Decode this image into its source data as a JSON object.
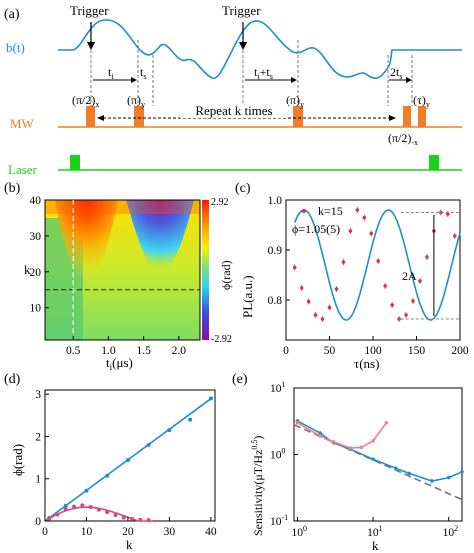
{
  "panel_a": {
    "label": "(a)",
    "row_labels": {
      "bt": "b(t)",
      "mw": "MW",
      "laser": "Laser"
    },
    "trigger1": "Trigger",
    "trigger2": "Trigger",
    "t1": "t",
    "t1_sub": "i",
    "ts1": "t",
    "ts1_sub": "s",
    "t2": "t",
    "t2_sub": "i",
    "t2_mid": "+t",
    "t2_sub2": "s",
    "ts2": "2t",
    "ts2_sub": "s",
    "pulse_pi2x": "(π/2)",
    "pulse_pi2x_sub": "x",
    "pulse_piy": "(π)",
    "pulse_piy_sub": "y",
    "pulse_pi": "(π)",
    "pulse_pi_sub": "y",
    "pulse_tau": "(τ)",
    "pulse_tau_sub": "y",
    "pulse_pi2mx": "(π/2)",
    "pulse_pi2mx_sub": "-x",
    "repeat": "Repeat k times",
    "colors": {
      "signal": "#1f8fcf",
      "mw": "#f07d2a",
      "laser": "#18d418"
    }
  },
  "chart_data": [
    {
      "panel": "(b)",
      "type": "heatmap",
      "xlabel": "t",
      "xlabel_sub": "i",
      "xlabel_unit": "(μs)",
      "ylabel": "k",
      "x_ticks": [
        "0.5",
        "1.0",
        "1.5",
        "2.0"
      ],
      "y_ticks": [
        "10",
        "20",
        "30",
        "40"
      ],
      "xlim": [
        0.1,
        2.3
      ],
      "ylim": [
        1,
        40
      ],
      "colorbar_label": "ϕ(rad)",
      "colorbar_max": "2.92",
      "colorbar_min": "-2.92",
      "dashed_lines": {
        "horizontal_k": 15,
        "vertical_ti": 0.5
      }
    },
    {
      "panel": "(c)",
      "type": "scatter",
      "xlabel": "τ(ns)",
      "ylabel": "PL(a.u.)",
      "x_ticks": [
        "0",
        "50",
        "100",
        "150",
        "200"
      ],
      "y_ticks": [
        "0.8",
        "0.9",
        "1.0"
      ],
      "xlim": [
        0,
        200
      ],
      "ylim": [
        0.72,
        1.0
      ],
      "legend": "k=15",
      "annotation_phase": "ϕ=1.05(5)",
      "annotation_amp": "2A",
      "fit": {
        "offset": 0.87,
        "amplitude": 0.11,
        "period_ns": 97,
        "phase_rad": 1.05
      },
      "points_x": [
        10,
        18,
        26,
        34,
        42,
        50,
        58,
        66,
        74,
        82,
        90,
        98,
        106,
        114,
        122,
        130,
        138,
        146,
        154,
        162,
        170,
        178,
        186,
        194
      ],
      "points_y": [
        0.865,
        0.824,
        0.797,
        0.77,
        0.762,
        0.785,
        0.822,
        0.876,
        0.938,
        0.98,
        0.965,
        0.933,
        0.878,
        0.828,
        0.79,
        0.762,
        0.77,
        0.798,
        0.838,
        0.886,
        0.938,
        0.975,
        0.972,
        0.928
      ]
    },
    {
      "panel": "(d)",
      "type": "scatter",
      "xlabel": "k",
      "ylabel": "ϕ(rad)",
      "x_ticks": [
        "0",
        "10",
        "20",
        "30",
        "40"
      ],
      "y_ticks": [
        "0",
        "1",
        "2",
        "3"
      ],
      "xlim": [
        0,
        41
      ],
      "ylim": [
        0,
        3.1
      ],
      "series": [
        {
          "color": "#1f8fcf",
          "x": [
            1,
            5,
            10,
            15,
            20,
            25,
            30,
            35,
            40
          ],
          "y": [
            0.07,
            0.36,
            0.72,
            1.07,
            1.44,
            1.8,
            2.15,
            2.4,
            2.9
          ]
        },
        {
          "color": "#e0457b",
          "x": [
            1,
            3,
            5,
            7,
            9,
            11,
            13,
            15,
            17,
            19,
            21,
            23,
            25
          ],
          "y": [
            0.05,
            0.15,
            0.28,
            0.34,
            0.37,
            0.33,
            0.27,
            0.21,
            0.14,
            0.08,
            0.05,
            0.03,
            0.02
          ]
        }
      ]
    },
    {
      "panel": "(e)",
      "type": "line",
      "xlabel": "k",
      "ylabel": "Sensitivity(μT/Hz",
      "ylabel_sup": "0.5",
      "ylabel_end": ")",
      "x_ticks": [
        "10",
        "10",
        "10"
      ],
      "x_tick_exps": [
        "0",
        "1",
        "2"
      ],
      "y_ticks": [
        "10",
        "10",
        "10"
      ],
      "y_tick_exps": [
        "-1",
        "0",
        "1"
      ],
      "x_scale": "log",
      "y_scale": "log",
      "xlim": [
        0.9,
        150
      ],
      "ylim": [
        0.1,
        10
      ],
      "series": [
        {
          "color": "#1f8fcf",
          "x": [
            1,
            2,
            3,
            5,
            10,
            20,
            30,
            60,
            100,
            150
          ],
          "y": [
            3.2,
            2.1,
            1.5,
            1.2,
            0.85,
            0.62,
            0.52,
            0.4,
            0.45,
            0.55
          ]
        },
        {
          "color": "#f08080",
          "x": [
            1,
            2,
            3,
            5,
            7,
            10,
            15
          ],
          "y": [
            3.0,
            1.9,
            1.55,
            1.25,
            1.28,
            1.6,
            3.0
          ]
        }
      ]
    }
  ]
}
